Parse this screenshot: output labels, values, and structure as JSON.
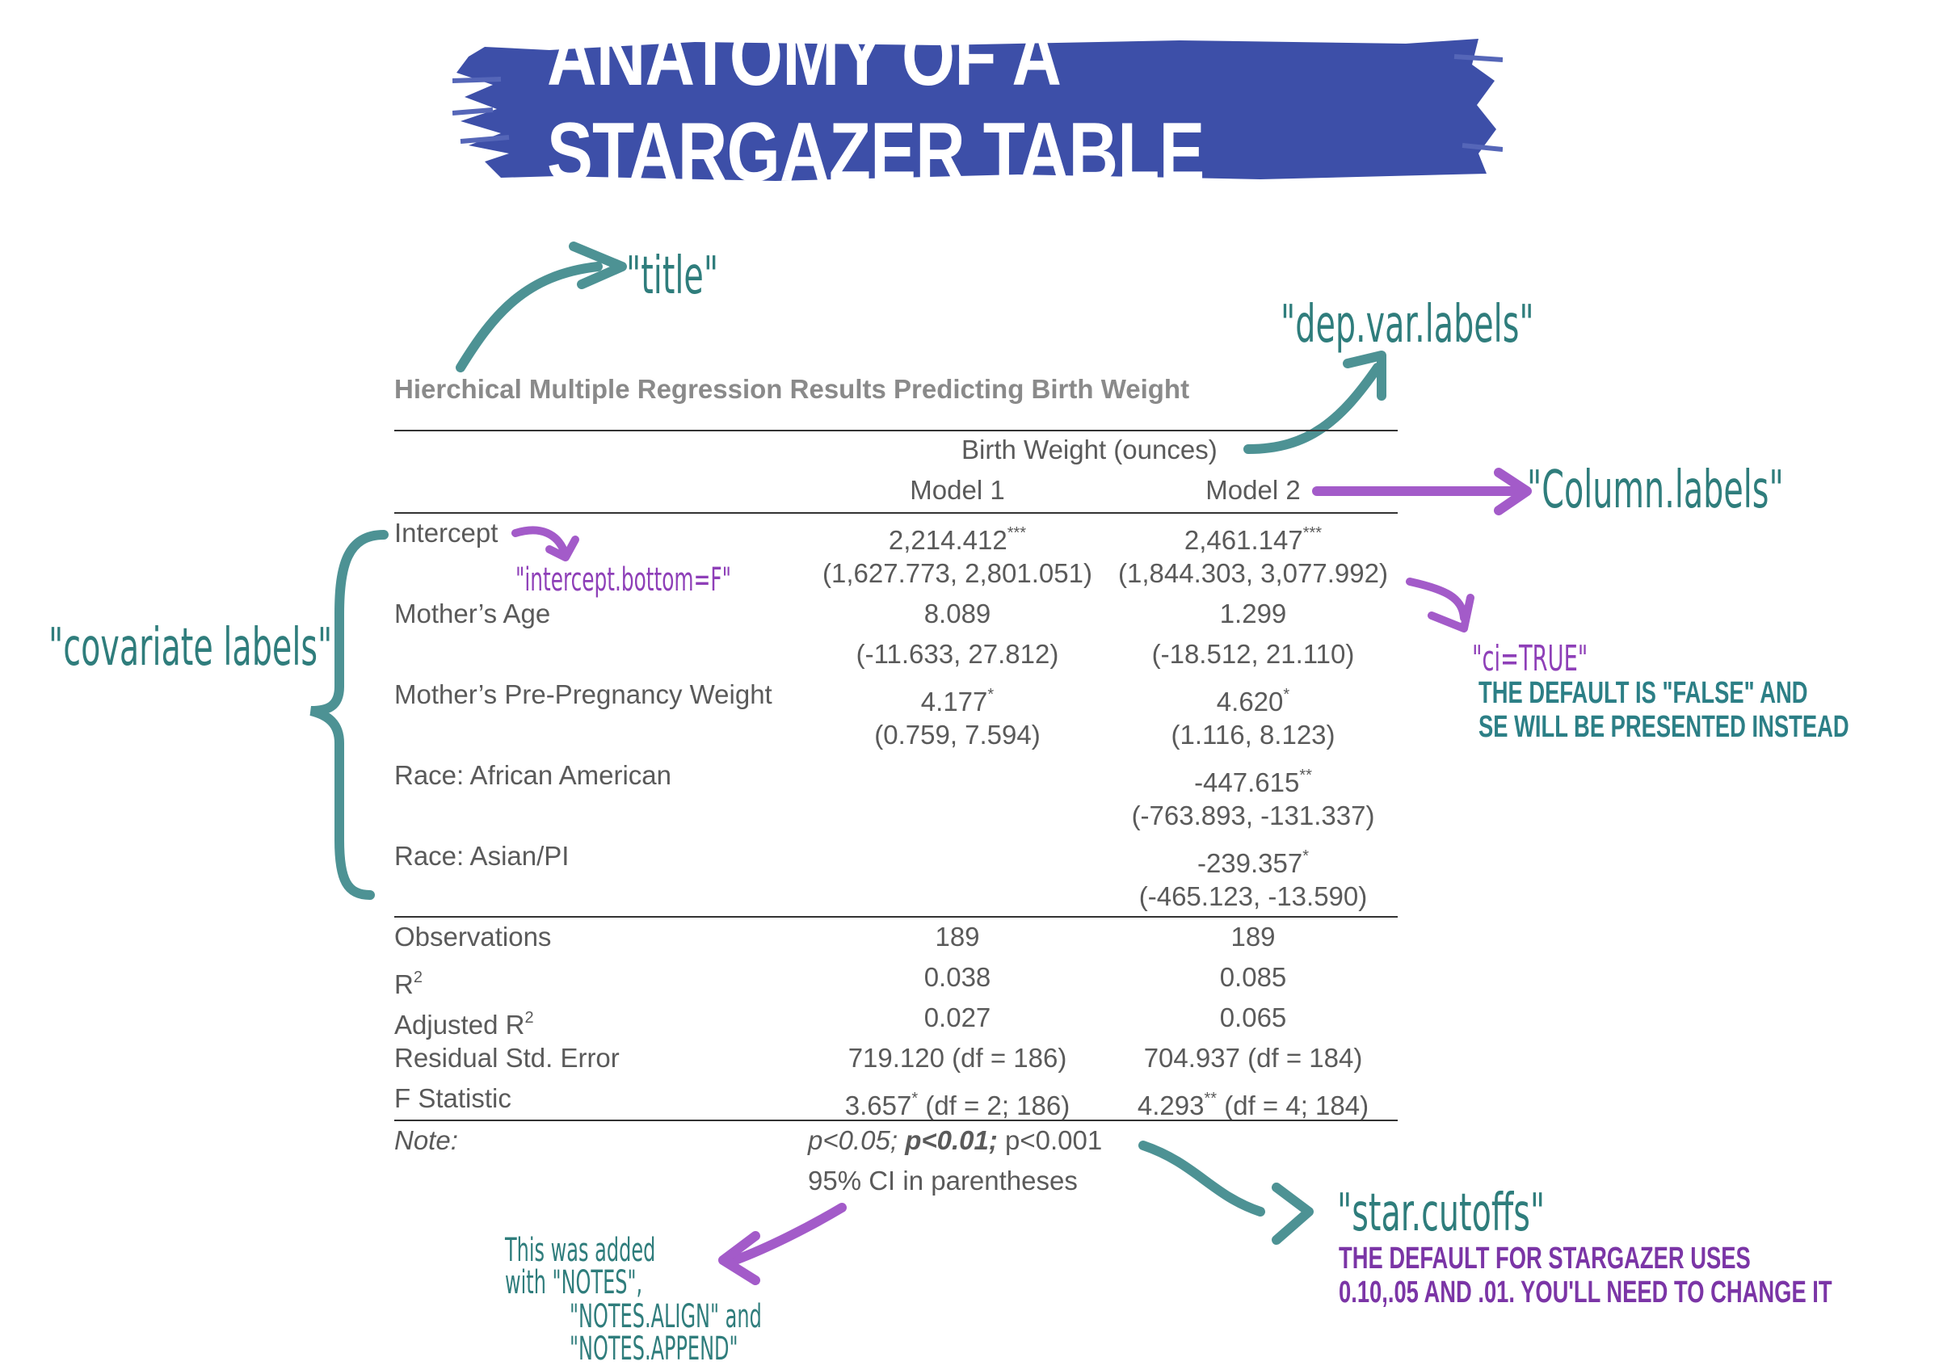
{
  "banner": {
    "title": "ANATOMY OF A STARGAZER TABLE",
    "color": "#3d4fa8"
  },
  "annotations": {
    "title": "\"title\"",
    "dep_var": "\"dep.var.labels\"",
    "column_labels": "\"Column.labels\"",
    "covariate": "\"covariate  labels\"",
    "intercept_bottom": "\"intercept.bottom=F\"",
    "ci": "\"ci=TRUE\"",
    "ci_note_1": "THE DEFAULT IS \"FALSE\" AND",
    "ci_note_2": "SE WILL BE PRESENTED INSTEAD",
    "star_cutoffs": "\"star.cutoffs\"",
    "star_note_1": "THE DEFAULT FOR STARGAZER USES",
    "star_note_2": "0.10,.05 AND .01. YOU'LL NEED TO CHANGE IT",
    "added_1": "This  was  added",
    "added_2": "with  \"NOTES\",",
    "added_3": "\"NOTES.ALIGN\"  and",
    "added_4": "\"NOTES.APPEND\""
  },
  "table": {
    "title": "Hierchical Multiple Regression Results Predicting Birth Weight",
    "dep_var": "Birth Weight (ounces)",
    "models": [
      "Model 1",
      "Model 2"
    ],
    "rows": [
      {
        "label": "Intercept",
        "m1": "2,214.412",
        "m1_star": "***",
        "m2": "2,461.147",
        "m2_star": "***",
        "m1_ci": "(1,627.773, 2,801.051)",
        "m2_ci": "(1,844.303, 3,077.992)"
      },
      {
        "label": "Mother’s Age",
        "m1": "8.089",
        "m1_star": "",
        "m2": "1.299",
        "m2_star": "",
        "m1_ci": "(-11.633, 27.812)",
        "m2_ci": "(-18.512, 21.110)"
      },
      {
        "label": "Mother’s Pre-Pregnancy Weight",
        "m1": "4.177",
        "m1_star": "*",
        "m2": "4.620",
        "m2_star": "*",
        "m1_ci": "(0.759, 7.594)",
        "m2_ci": "(1.116, 8.123)"
      },
      {
        "label": "Race: African American",
        "m1": "",
        "m1_star": "",
        "m2": "-447.615",
        "m2_star": "**",
        "m1_ci": "",
        "m2_ci": "(-763.893, -131.337)"
      },
      {
        "label": "Race: Asian/PI",
        "m1": "",
        "m1_star": "",
        "m2": "-239.357",
        "m2_star": "*",
        "m1_ci": "",
        "m2_ci": "(-465.123, -13.590)"
      }
    ],
    "stats": {
      "observations": {
        "label": "Observations",
        "m1": "189",
        "m2": "189"
      },
      "r2": {
        "label": "R",
        "sup": "2",
        "m1": "0.038",
        "m2": "0.085"
      },
      "adj_r2": {
        "label": "Adjusted R",
        "sup": "2",
        "m1": "0.027",
        "m2": "0.065"
      },
      "rse": {
        "label": "Residual Std. Error",
        "m1": "719.120 (df = 186)",
        "m2": "704.937 (df = 184)"
      },
      "f": {
        "label": "F Statistic",
        "m1": "3.657",
        "m1_star": "*",
        "m1_rest": " (df = 2; 186)",
        "m2": "4.293",
        "m2_star": "**",
        "m2_rest": " (df = 4; 184)"
      }
    },
    "note": {
      "label": "Note:",
      "p1": "p<0.05;",
      "p2": "p<0.01;",
      "p3": "p<0.001",
      "line2": "95% CI in parentheses"
    }
  }
}
